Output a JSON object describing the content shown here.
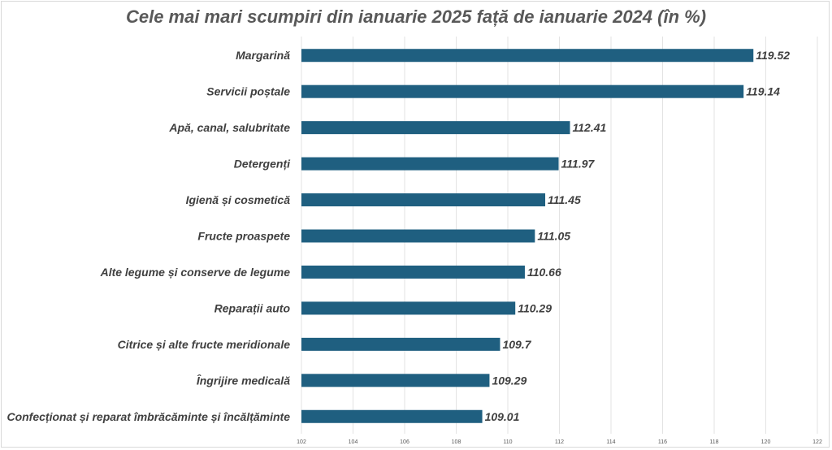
{
  "chart_data": {
    "type": "bar",
    "orientation": "horizontal",
    "title": "Cele mai mari scumpiri din ianuarie 2025 față de ianuarie 2024 (în %)",
    "categories": [
      "Margarină",
      "Servicii poștale",
      "Apă, canal, salubritate",
      "Detergenți",
      "Igienă și cosmetică",
      "Fructe proaspete",
      "Alte legume și conserve de legume",
      "Reparații auto",
      "Citrice și alte fructe meridionale",
      "Îngrijire medicală",
      "Confecționat și reparat îmbrăcăminte și încălțăminte"
    ],
    "values": [
      119.52,
      119.14,
      112.41,
      111.97,
      111.45,
      111.05,
      110.66,
      110.29,
      109.7,
      109.29,
      109.01
    ],
    "value_labels": [
      "119.52",
      "119.14",
      "112.41",
      "111.97",
      "111.45",
      "111.05",
      "110.66",
      "110.29",
      "109.7",
      "109.29",
      "109.01"
    ],
    "xlim": [
      102,
      122
    ],
    "xticks": [
      "102",
      "104",
      "106",
      "108",
      "110",
      "112",
      "114",
      "116",
      "118",
      "120",
      "122"
    ],
    "grid": "vertical",
    "bar_color": "#1f5f80",
    "legend": "none"
  }
}
